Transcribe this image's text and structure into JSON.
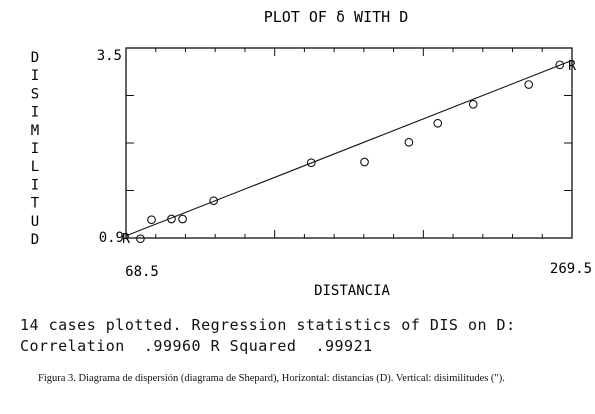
{
  "chart_data": {
    "type": "scatter",
    "title": "PLOT OF δ WITH D",
    "ylabel_letters": [
      "D",
      "I",
      "S",
      "I",
      "M",
      "I",
      "L",
      "I",
      "T",
      "U",
      "D"
    ],
    "xlabel": "DISTANCIA",
    "x_range": [
      68.5,
      269.5
    ],
    "y_range": [
      0.9,
      3.5
    ],
    "x_tick_labels": [
      "68.5",
      "269.5"
    ],
    "y_tick_labels": [
      "3.5",
      "0.9"
    ],
    "points": [
      {
        "x": 68.5,
        "y": 0.9,
        "marker": "R"
      },
      {
        "x": 75.0,
        "y": 0.89,
        "marker": "O"
      },
      {
        "x": 80.0,
        "y": 1.15,
        "marker": "O"
      },
      {
        "x": 89.0,
        "y": 1.16,
        "marker": "O"
      },
      {
        "x": 94.0,
        "y": 1.16,
        "marker": "O"
      },
      {
        "x": 108.0,
        "y": 1.41,
        "marker": "O"
      },
      {
        "x": 152.0,
        "y": 1.93,
        "marker": "O"
      },
      {
        "x": 176.0,
        "y": 1.94,
        "marker": "O"
      },
      {
        "x": 196.0,
        "y": 2.21,
        "marker": "O"
      },
      {
        "x": 209.0,
        "y": 2.47,
        "marker": "O"
      },
      {
        "x": 225.0,
        "y": 2.73,
        "marker": "O"
      },
      {
        "x": 250.0,
        "y": 3.0,
        "marker": "O"
      },
      {
        "x": 264.0,
        "y": 3.27,
        "marker": "O"
      },
      {
        "x": 269.5,
        "y": 3.27,
        "marker": "R"
      }
    ],
    "regression_line": {
      "x": [
        68.5,
        269.5
      ],
      "y": [
        0.93,
        3.33
      ]
    }
  },
  "stats": {
    "line1": "14 cases plotted. Regression statistics of DIS on D:",
    "line2": "Correlation  .99960 R Squared  .99921"
  },
  "caption": {
    "text": "Figura 3.   Diagrama de dispersión (diagrama de Shepard), Horizontal: distancias (D). Vertical: disimilitudes (\")."
  }
}
